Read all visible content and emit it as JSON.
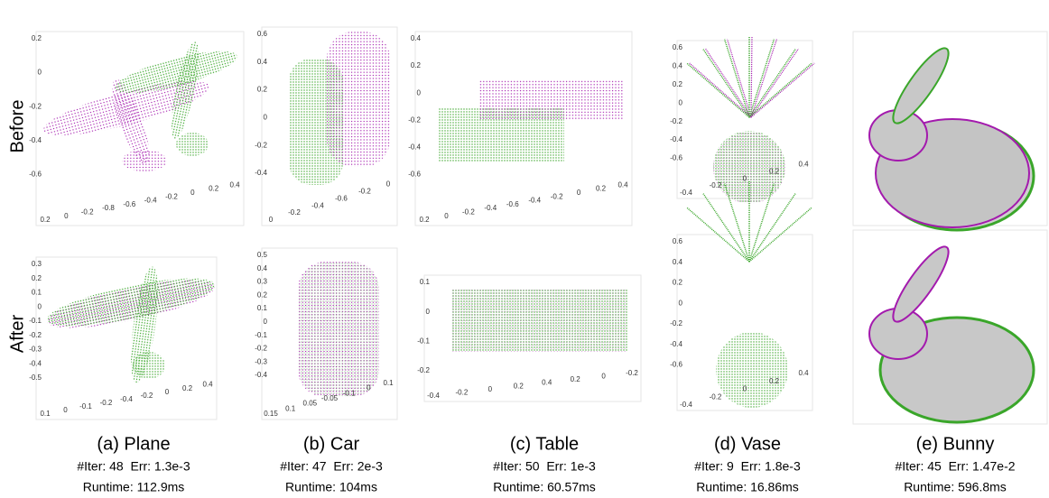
{
  "row_labels": [
    "Before",
    "After"
  ],
  "panels": [
    {
      "caption": "(a) Plane",
      "stats": "#Iter: 48  Err: 1.3e-3",
      "runtime": "Runtime: 112.9ms",
      "before": {
        "left_ticks": [
          "0.2",
          "0",
          "-0.2",
          "-0.4",
          "-0.6"
        ],
        "bottom_ticks": [
          "0.2",
          "0",
          "-0.2",
          "-0.8",
          "-0.6",
          "-0.4",
          "-0.2",
          "0",
          "0.2",
          "0.4"
        ]
      },
      "after": {
        "left_ticks": [
          "0.3",
          "0.2",
          "0.1",
          "0",
          "-0.1",
          "-0.2",
          "-0.3",
          "-0.4",
          "-0.5"
        ],
        "bottom_ticks": [
          "0.1",
          "0",
          "-0.1",
          "-0.2",
          "-0.4",
          "-0.2",
          "0",
          "0.2",
          "0.4"
        ]
      }
    },
    {
      "caption": "(b) Car",
      "stats": "#Iter: 47  Err: 2e-3",
      "runtime": "Runtime: 104ms",
      "before": {
        "left_ticks": [
          "0.6",
          "0.4",
          "0.2",
          "0",
          "-0.2",
          "-0.4"
        ],
        "bottom_ticks": [
          "0",
          "-0.2",
          "-0.4",
          "-0.6",
          "-0.2",
          "0"
        ]
      },
      "after": {
        "left_ticks": [
          "0.5",
          "0.4",
          "0.3",
          "0.2",
          "0.1",
          "0",
          "-0.1",
          "-0.2",
          "-0.3",
          "-0.4"
        ],
        "bottom_ticks": [
          "0.15",
          "0.1",
          "0.05",
          "-0.05",
          "-0.1",
          "0",
          "0.1"
        ]
      }
    },
    {
      "caption": "(c) Table",
      "stats": "#Iter: 50  Err: 1e-3",
      "runtime": "Runtime: 60.57ms",
      "before": {
        "left_ticks": [
          "0.4",
          "0.2",
          "0",
          "-0.2",
          "-0.4",
          "-0.6"
        ],
        "bottom_ticks": [
          "0.2",
          "0",
          "-0.2",
          "-0.4",
          "-0.6",
          "-0.4",
          "-0.2",
          "0",
          "0.2",
          "0.4"
        ]
      },
      "after": {
        "left_ticks": [
          "0.1",
          "0",
          "-0.1",
          "-0.2"
        ],
        "bottom_ticks": [
          "-0.4",
          "-0.2",
          "0",
          "0.2",
          "0.4",
          "0.2",
          "0",
          "-0.2"
        ]
      }
    },
    {
      "caption": "(d) Vase",
      "stats": "#Iter: 9  Err: 1.8e-3",
      "runtime": "Runtime: 16.86ms",
      "before": {
        "left_ticks": [
          "0.6",
          "0.4",
          "0.2",
          "0",
          "-0.2",
          "-0.4",
          "-0.6"
        ],
        "bottom_ticks": [
          "-0.4",
          "-0.2",
          "0",
          "0.2",
          "0.4"
        ]
      },
      "after": {
        "left_ticks": [
          "0.6",
          "0.4",
          "0.2",
          "0",
          "-0.2",
          "-0.4",
          "-0.6"
        ],
        "bottom_ticks": [
          "-0.4",
          "-0.2",
          "0",
          "0.2",
          "0.4"
        ]
      }
    },
    {
      "caption": "(e) Bunny",
      "stats": "#Iter: 45  Err: 1.47e-2",
      "runtime": "Runtime: 596.8ms"
    }
  ]
}
